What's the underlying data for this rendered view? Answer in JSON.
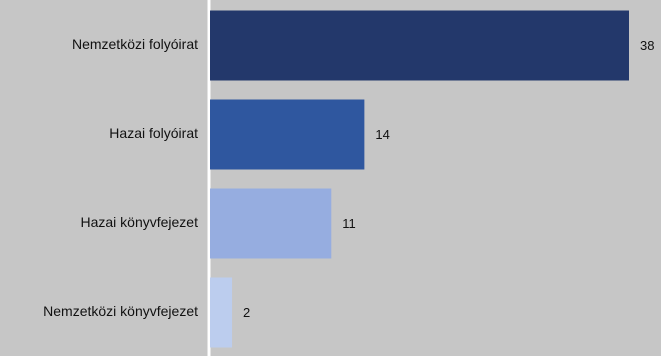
{
  "chart_data": {
    "type": "bar",
    "orientation": "horizontal",
    "categories": [
      "Nemzetközi folyóirat",
      "Hazai folyóirat",
      "Hazai könyvfejezet",
      "Nemzetközi könyvfejezet"
    ],
    "values": [
      38,
      14,
      11,
      2
    ],
    "value_labels": [
      "38",
      "14",
      "11",
      "2"
    ],
    "colors": [
      "#23386b",
      "#2f579f",
      "#96ade0",
      "#bccdee"
    ],
    "background": "#c6c6c6",
    "axis_color": "#ffffff",
    "xlim": [
      0,
      38
    ],
    "title": "",
    "xlabel": "",
    "ylabel": "",
    "grid": false,
    "legend": "none"
  }
}
